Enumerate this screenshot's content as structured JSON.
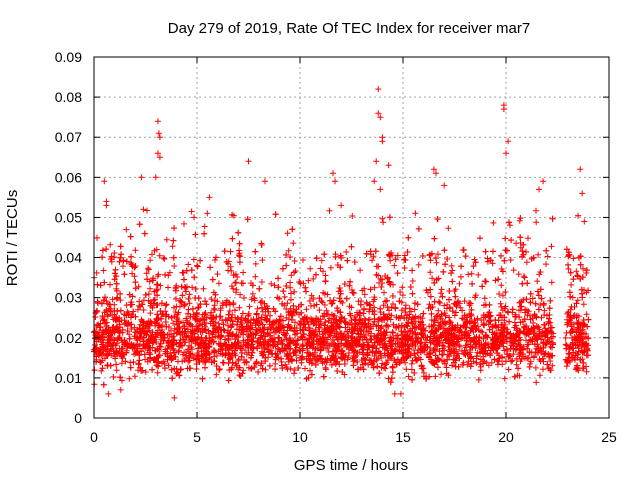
{
  "chart_data": {
    "type": "scatter",
    "title": "Day 279 of 2019, Rate Of TEC Index for receiver mar7",
    "xlabel": "GPS time / hours",
    "ylabel": "ROTI / TECUs",
    "xlim": [
      0,
      25
    ],
    "ylim": [
      0,
      0.09
    ],
    "xticks": [
      0,
      5,
      10,
      15,
      20,
      25
    ],
    "xtick_labels": [
      "0",
      "5",
      "10",
      "15",
      "20",
      "25"
    ],
    "yticks": [
      0,
      0.01,
      0.02,
      0.03,
      0.04,
      0.05,
      0.06,
      0.07,
      0.08,
      0.09
    ],
    "ytick_labels": [
      "0",
      "0.01",
      "0.02",
      "0.03",
      "0.04",
      "0.05",
      "0.06",
      "0.07",
      "0.08",
      "0.09"
    ],
    "grid": true,
    "marker": "+",
    "color": "#ff0000",
    "data_gap_hours": [
      22.3,
      22.9
    ],
    "series": [
      {
        "name": "ROTI",
        "description_of_density": "dense band 0.01-0.03 across 0-22.3 h and 22.9-24 h",
        "outliers": [
          {
            "x": 0.5,
            "y": 0.059
          },
          {
            "x": 0.6,
            "y": 0.053
          },
          {
            "x": 0.6,
            "y": 0.054
          },
          {
            "x": 2.3,
            "y": 0.06
          },
          {
            "x": 2.4,
            "y": 0.052
          },
          {
            "x": 3.1,
            "y": 0.074
          },
          {
            "x": 3.15,
            "y": 0.071
          },
          {
            "x": 3.2,
            "y": 0.07
          },
          {
            "x": 3.1,
            "y": 0.066
          },
          {
            "x": 3.2,
            "y": 0.065
          },
          {
            "x": 3.0,
            "y": 0.06
          },
          {
            "x": 5.6,
            "y": 0.055
          },
          {
            "x": 5.5,
            "y": 0.051
          },
          {
            "x": 7.5,
            "y": 0.064
          },
          {
            "x": 8.3,
            "y": 0.059
          },
          {
            "x": 11.6,
            "y": 0.061
          },
          {
            "x": 11.7,
            "y": 0.059
          },
          {
            "x": 12.0,
            "y": 0.053
          },
          {
            "x": 13.8,
            "y": 0.082
          },
          {
            "x": 13.8,
            "y": 0.076
          },
          {
            "x": 13.9,
            "y": 0.075
          },
          {
            "x": 14.0,
            "y": 0.07
          },
          {
            "x": 14.0,
            "y": 0.069
          },
          {
            "x": 13.7,
            "y": 0.064
          },
          {
            "x": 14.3,
            "y": 0.063
          },
          {
            "x": 13.6,
            "y": 0.059
          },
          {
            "x": 13.9,
            "y": 0.057
          },
          {
            "x": 16.5,
            "y": 0.062
          },
          {
            "x": 16.6,
            "y": 0.061
          },
          {
            "x": 17.0,
            "y": 0.058
          },
          {
            "x": 19.9,
            "y": 0.078
          },
          {
            "x": 19.9,
            "y": 0.077
          },
          {
            "x": 20.1,
            "y": 0.069
          },
          {
            "x": 20.0,
            "y": 0.066
          },
          {
            "x": 21.8,
            "y": 0.059
          },
          {
            "x": 21.6,
            "y": 0.057
          },
          {
            "x": 23.6,
            "y": 0.062
          },
          {
            "x": 23.7,
            "y": 0.056
          },
          {
            "x": 23.8,
            "y": 0.049
          },
          {
            "x": 0.7,
            "y": 0.006
          },
          {
            "x": 1.3,
            "y": 0.007
          },
          {
            "x": 3.9,
            "y": 0.005
          },
          {
            "x": 14.6,
            "y": 0.006
          },
          {
            "x": 14.9,
            "y": 0.006
          }
        ]
      }
    ]
  }
}
